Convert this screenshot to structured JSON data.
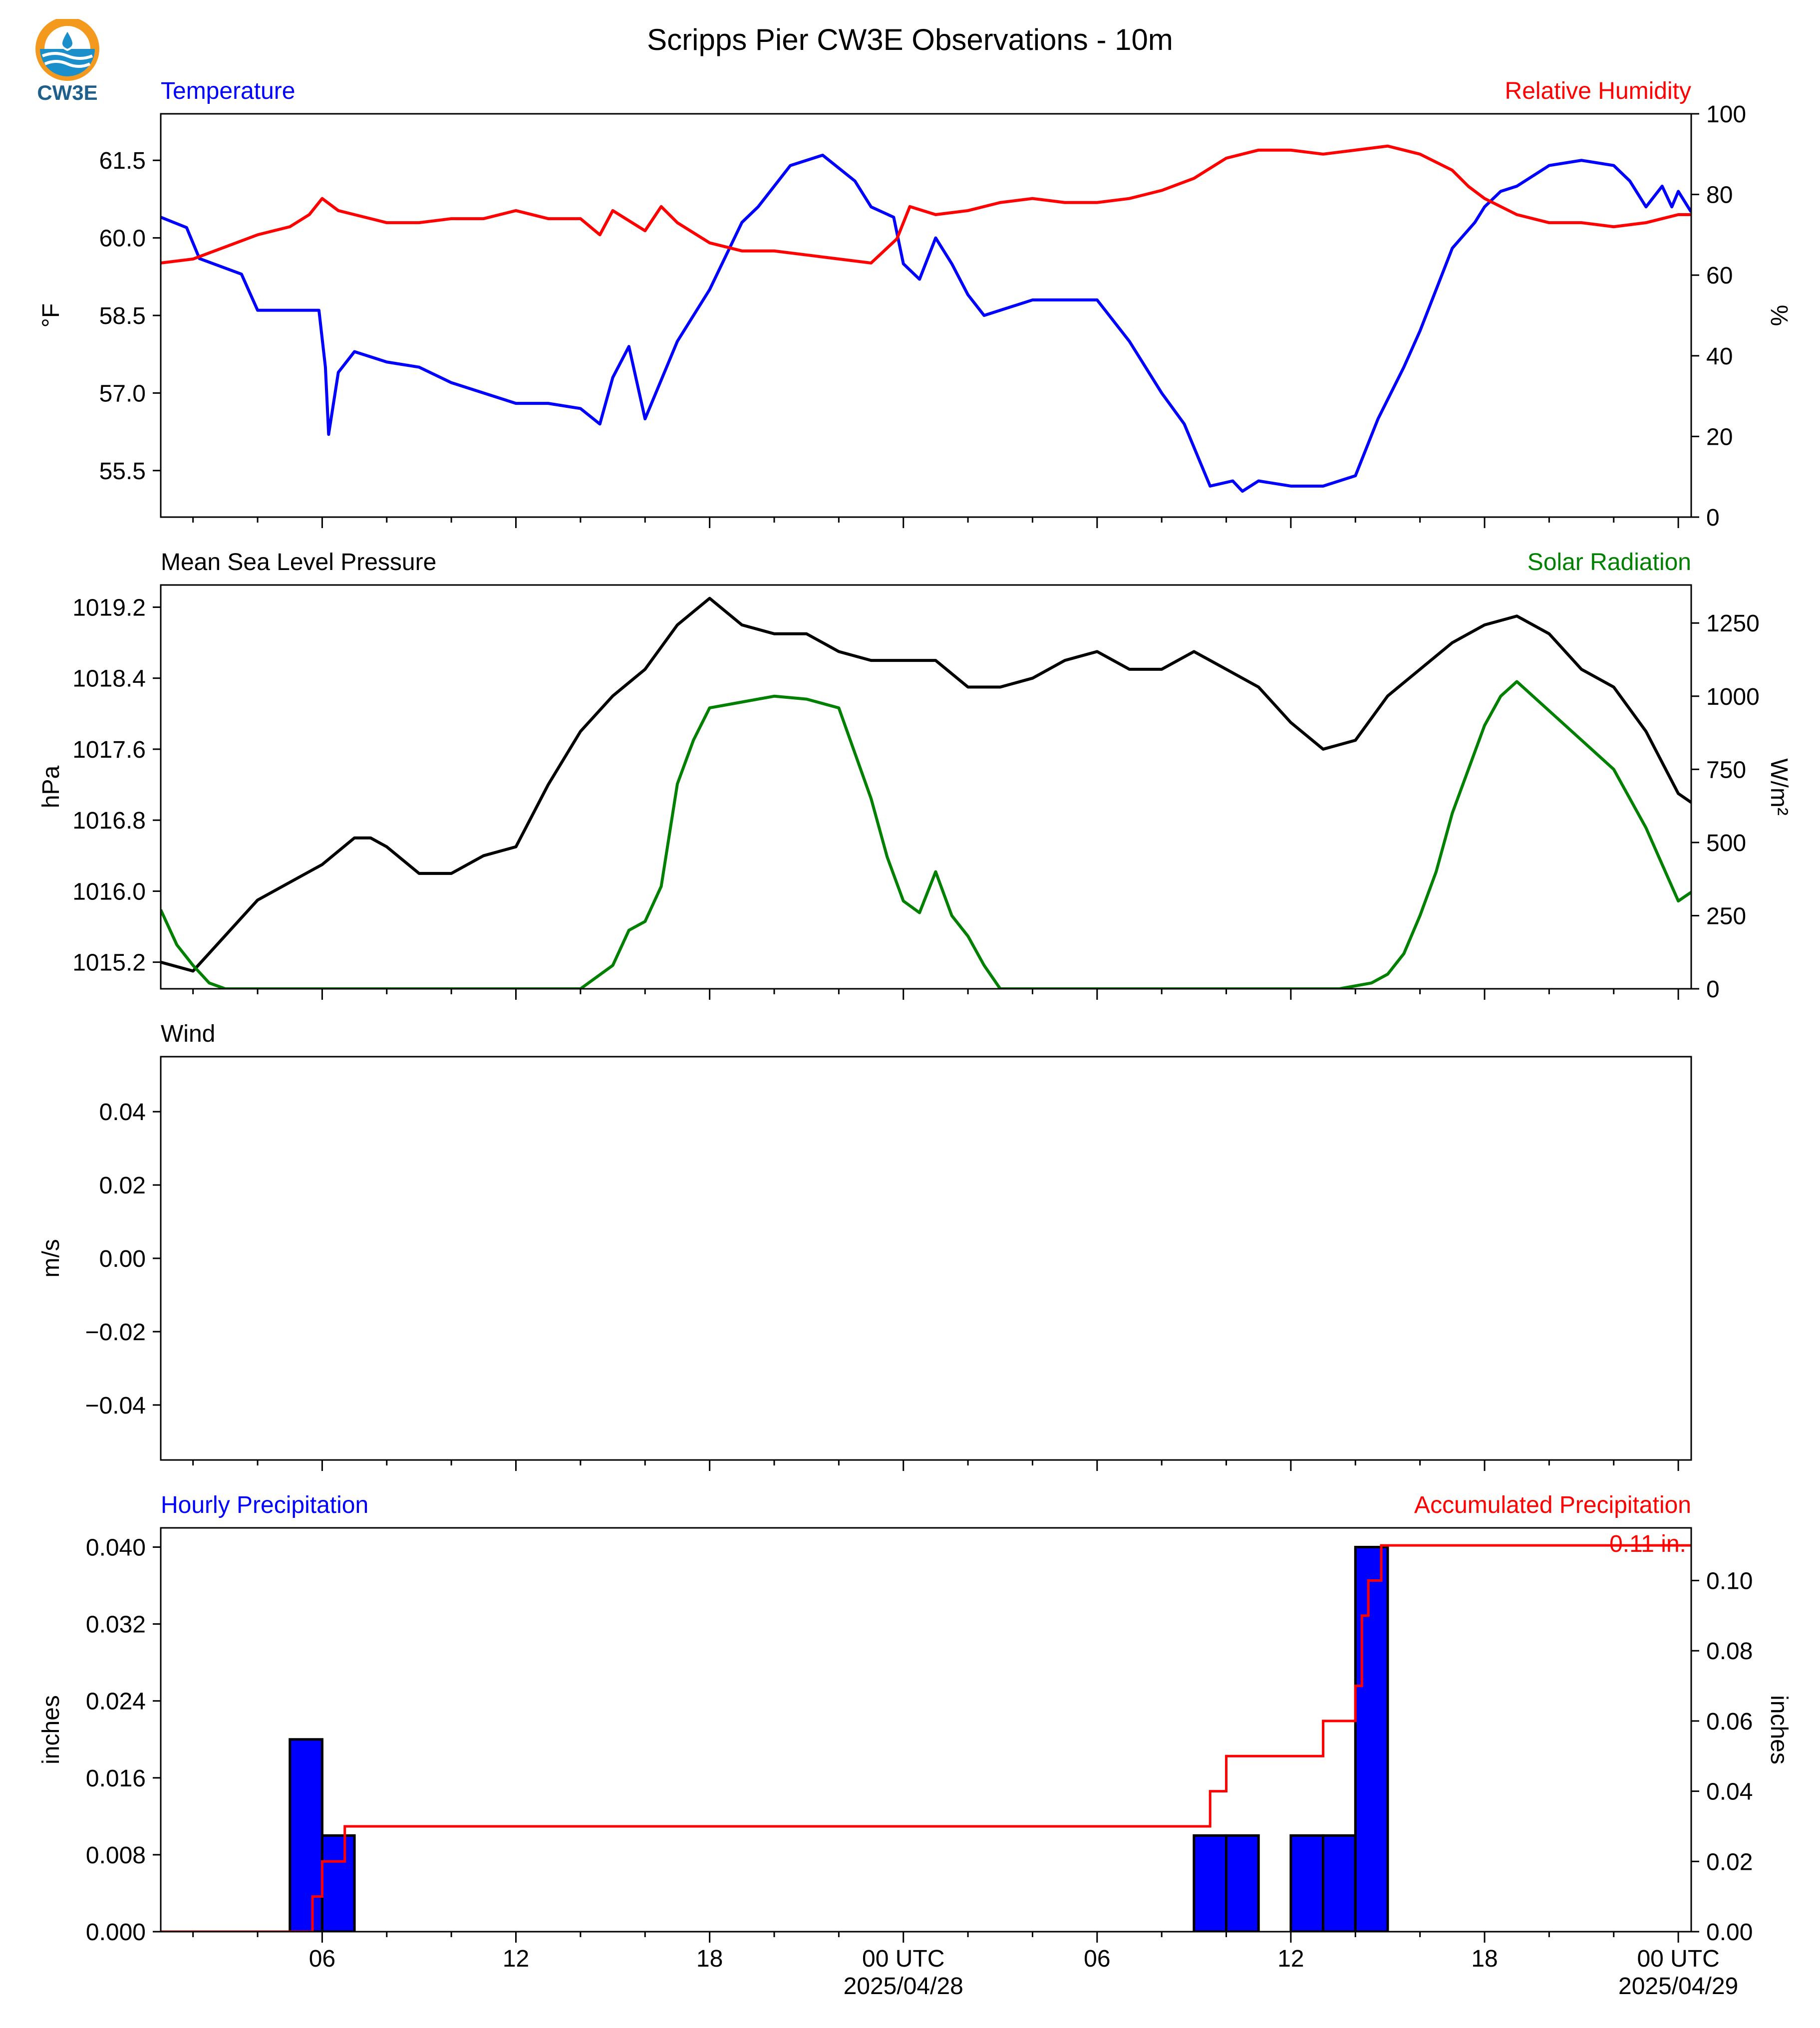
{
  "logo": {
    "text": "CW3E",
    "colors": {
      "orange": "#f39a1e",
      "blue": "#1b8fc9",
      "dark": "#1f5f8b"
    }
  },
  "title": "Scripps Pier CW3E Observations - 10m",
  "colors": {
    "blue": "#0000ff",
    "red": "#ff0000",
    "green": "#008000",
    "black": "#000000"
  },
  "time_axis": {
    "start_hour": 1,
    "end_hour": 48.4,
    "tick_labels": [
      {
        "hour": 6,
        "label": "06",
        "date": ""
      },
      {
        "hour": 12,
        "label": "12",
        "date": ""
      },
      {
        "hour": 18,
        "label": "18",
        "date": ""
      },
      {
        "hour": 24,
        "label": "00 UTC",
        "date": "2025/04/28"
      },
      {
        "hour": 30,
        "label": "06",
        "date": ""
      },
      {
        "hour": 36,
        "label": "12",
        "date": ""
      },
      {
        "hour": 42,
        "label": "18",
        "date": ""
      },
      {
        "hour": 48,
        "label": "00 UTC",
        "date": "2025/04/29"
      }
    ]
  },
  "panels": {
    "temp_rh": {
      "left_title": "Temperature",
      "right_title": "Relative Humidity",
      "left_unit": "°F",
      "right_unit": "%",
      "left_ticks": [
        "61.5",
        "60.0",
        "58.5",
        "57.0",
        "55.5"
      ],
      "right_ticks": [
        "100",
        "80",
        "60",
        "40",
        "20",
        "0"
      ]
    },
    "pressure_solar": {
      "left_title": "Mean Sea Level Pressure",
      "right_title": "Solar Radiation",
      "left_unit": "hPa",
      "right_unit": "W/m²",
      "left_ticks": [
        "1019.2",
        "1018.4",
        "1017.6",
        "1016.8",
        "1016.0",
        "1015.2"
      ],
      "right_ticks": [
        "1250",
        "1000",
        "750",
        "500",
        "250",
        "0"
      ]
    },
    "wind": {
      "left_title": "Wind",
      "left_unit": "m/s",
      "left_ticks": [
        "0.04",
        "0.02",
        "0.00",
        "−0.02",
        "−0.04"
      ]
    },
    "precip": {
      "left_title": "Hourly Precipitation",
      "right_title": "Accumulated Precipitation",
      "left_unit": "inches",
      "right_unit": "inches",
      "left_ticks": [
        "0.040",
        "0.032",
        "0.024",
        "0.016",
        "0.008",
        "0.000"
      ],
      "right_ticks": [
        "0.10",
        "0.08",
        "0.06",
        "0.04",
        "0.02",
        "0.00"
      ],
      "total_label": "0.11 in."
    }
  },
  "chart_data": [
    {
      "type": "line",
      "title": "Temperature",
      "ylabel": "°F",
      "ylim": [
        54.6,
        62.4
      ],
      "x_unit": "hours from 2025/04/27 00 UTC",
      "series": [
        {
          "name": "Temperature",
          "color": "#0000ff",
          "x": [
            1.0,
            1.8,
            2.2,
            3.5,
            4.0,
            5.0,
            5.9,
            6.1,
            6.2,
            6.5,
            7.0,
            8.0,
            9.0,
            10.0,
            11.0,
            12.0,
            13.0,
            14.0,
            14.6,
            15.0,
            15.5,
            16.0,
            17.0,
            18.0,
            19.0,
            19.5,
            20.5,
            21.5,
            22.5,
            23.0,
            23.7,
            24.0,
            24.5,
            25.0,
            25.5,
            26.0,
            26.5,
            27.0,
            28.0,
            29.0,
            30.0,
            31.0,
            32.0,
            32.7,
            33.5,
            34.2,
            34.5,
            35.0,
            36.0,
            37.0,
            38.0,
            38.7,
            39.5,
            40.0,
            41.0,
            41.7,
            42.0,
            42.5,
            43.0,
            44.0,
            45.0,
            46.0,
            46.5,
            47.0,
            47.5,
            47.8,
            48.0,
            48.4
          ],
          "y": [
            60.4,
            60.2,
            59.6,
            59.3,
            58.6,
            58.6,
            58.6,
            57.5,
            56.2,
            57.4,
            57.8,
            57.6,
            57.5,
            57.2,
            57.0,
            56.8,
            56.8,
            56.7,
            56.4,
            57.3,
            57.9,
            56.5,
            58.0,
            59.0,
            60.3,
            60.6,
            61.4,
            61.6,
            61.1,
            60.6,
            60.4,
            59.5,
            59.2,
            60.0,
            59.5,
            58.9,
            58.5,
            58.6,
            58.8,
            58.8,
            58.8,
            58.0,
            57.0,
            56.4,
            55.2,
            55.3,
            55.1,
            55.3,
            55.2,
            55.2,
            55.4,
            56.5,
            57.5,
            58.2,
            59.8,
            60.3,
            60.6,
            60.9,
            61.0,
            61.4,
            61.5,
            61.4,
            61.1,
            60.6,
            61.0,
            60.6,
            60.9,
            60.5
          ]
        },
        {
          "name": "Relative Humidity",
          "color": "#ff0000",
          "y_unit": "%",
          "x": [
            1.0,
            2.0,
            3.0,
            4.0,
            5.0,
            5.6,
            6.0,
            6.5,
            7.0,
            8.0,
            9.0,
            10.0,
            11.0,
            12.0,
            13.0,
            14.0,
            14.6,
            15.0,
            16.0,
            16.5,
            17.0,
            18.0,
            19.0,
            20.0,
            21.0,
            22.0,
            23.0,
            23.8,
            24.2,
            25.0,
            26.0,
            27.0,
            28.0,
            29.0,
            30.0,
            31.0,
            32.0,
            33.0,
            34.0,
            35.0,
            36.0,
            37.0,
            38.0,
            39.0,
            40.0,
            41.0,
            41.5,
            42.0,
            43.0,
            44.0,
            45.0,
            46.0,
            47.0,
            47.5,
            48.0,
            48.4
          ],
          "y": [
            63,
            64,
            67,
            70,
            72,
            75,
            79,
            76,
            75,
            73,
            73,
            74,
            74,
            76,
            74,
            74,
            70,
            76,
            71,
            77,
            73,
            68,
            66,
            66,
            65,
            64,
            63,
            69,
            77,
            75,
            76,
            78,
            79,
            78,
            78,
            79,
            81,
            84,
            89,
            91,
            91,
            90,
            91,
            92,
            90,
            86,
            82,
            79,
            75,
            73,
            73,
            72,
            73,
            74,
            75,
            75
          ]
        }
      ],
      "y2label": "%",
      "y2lim": [
        0,
        100
      ]
    },
    {
      "type": "line",
      "title": "Mean Sea Level Pressure",
      "ylabel": "hPa",
      "ylim": [
        1014.9,
        1019.45
      ],
      "x_unit": "hours from 2025/04/27 00 UTC",
      "series": [
        {
          "name": "Mean Sea Level Pressure",
          "color": "#000000",
          "x": [
            1.0,
            2.0,
            3.0,
            4.0,
            5.0,
            6.0,
            7.0,
            7.5,
            8.0,
            9.0,
            10.0,
            11.0,
            12.0,
            13.0,
            14.0,
            15.0,
            16.0,
            17.0,
            18.0,
            19.0,
            20.0,
            21.0,
            22.0,
            23.0,
            24.0,
            25.0,
            26.0,
            27.0,
            28.0,
            29.0,
            30.0,
            31.0,
            32.0,
            33.0,
            34.0,
            35.0,
            36.0,
            37.0,
            38.0,
            39.0,
            40.0,
            41.0,
            42.0,
            43.0,
            44.0,
            45.0,
            46.0,
            47.0,
            48.0,
            48.4
          ],
          "y": [
            1015.2,
            1015.1,
            1015.5,
            1015.9,
            1016.1,
            1016.3,
            1016.6,
            1016.6,
            1016.5,
            1016.2,
            1016.2,
            1016.4,
            1016.5,
            1017.2,
            1017.8,
            1018.2,
            1018.5,
            1019.0,
            1019.3,
            1019.0,
            1018.9,
            1018.9,
            1018.7,
            1018.6,
            1018.6,
            1018.6,
            1018.3,
            1018.3,
            1018.4,
            1018.6,
            1018.7,
            1018.5,
            1018.5,
            1018.7,
            1018.5,
            1018.3,
            1017.9,
            1017.6,
            1017.7,
            1018.2,
            1018.5,
            1018.8,
            1019.0,
            1019.1,
            1018.9,
            1018.5,
            1018.3,
            1017.8,
            1017.1,
            1017.0
          ]
        },
        {
          "name": "Solar Radiation",
          "color": "#008000",
          "y_unit": "W/m²",
          "x": [
            1.0,
            1.5,
            2.0,
            2.5,
            3.0,
            14.0,
            15.0,
            15.5,
            16.0,
            16.5,
            17.0,
            17.5,
            18.0,
            19.0,
            20.0,
            21.0,
            22.0,
            23.0,
            23.5,
            24.0,
            24.5,
            25.0,
            25.5,
            26.0,
            26.5,
            27.0,
            37.5,
            38.5,
            39.0,
            39.5,
            40.0,
            40.5,
            41.0,
            41.5,
            42.0,
            42.5,
            43.0,
            44.0,
            45.0,
            46.0,
            47.0,
            48.0,
            48.4
          ],
          "y": [
            270,
            150,
            80,
            20,
            0,
            0,
            80,
            200,
            230,
            350,
            700,
            850,
            960,
            980,
            1000,
            990,
            960,
            650,
            450,
            300,
            260,
            400,
            250,
            180,
            80,
            0,
            0,
            20,
            50,
            120,
            250,
            400,
            600,
            750,
            900,
            1000,
            1050,
            950,
            850,
            750,
            550,
            300,
            330
          ]
        }
      ],
      "y2label": "W/m²",
      "y2lim": [
        0,
        1380
      ]
    },
    {
      "type": "line",
      "title": "Wind",
      "ylabel": "m/s",
      "ylim": [
        -0.055,
        0.055
      ],
      "series": []
    },
    {
      "type": "bar",
      "title": "Hourly Precipitation",
      "ylabel": "inches",
      "ylim": [
        0.0,
        0.042
      ],
      "x_unit": "hours from 2025/04/27 00 UTC",
      "bar_width_hours": 1,
      "series": [
        {
          "name": "Hourly Precipitation",
          "color": "#0000ff",
          "x": [
            5,
            6,
            33,
            34,
            36,
            37,
            38
          ],
          "values": [
            0.02,
            0.01,
            0.01,
            0.01,
            0.01,
            0.01,
            0.04
          ]
        },
        {
          "name": "Accumulated Precipitation",
          "color": "#ff0000",
          "type": "step",
          "y_unit": "inches",
          "x": [
            1.0,
            5.0,
            5.3,
            5.7,
            6.0,
            6.3,
            6.7,
            23.9,
            24.1,
            33.0,
            33.5,
            34.0,
            36.0,
            36.5,
            37.0,
            38.0,
            38.2,
            38.4,
            38.6,
            38.8,
            48.4
          ],
          "y": [
            0.0,
            0.0,
            0.0,
            0.01,
            0.02,
            0.02,
            0.03,
            0.03,
            0.03,
            0.03,
            0.04,
            0.05,
            0.05,
            0.05,
            0.06,
            0.07,
            0.09,
            0.1,
            0.1,
            0.11,
            0.11
          ]
        }
      ],
      "y2label": "inches",
      "y2lim": [
        0.0,
        0.115
      ],
      "annotations": [
        "0.11 in."
      ]
    }
  ]
}
